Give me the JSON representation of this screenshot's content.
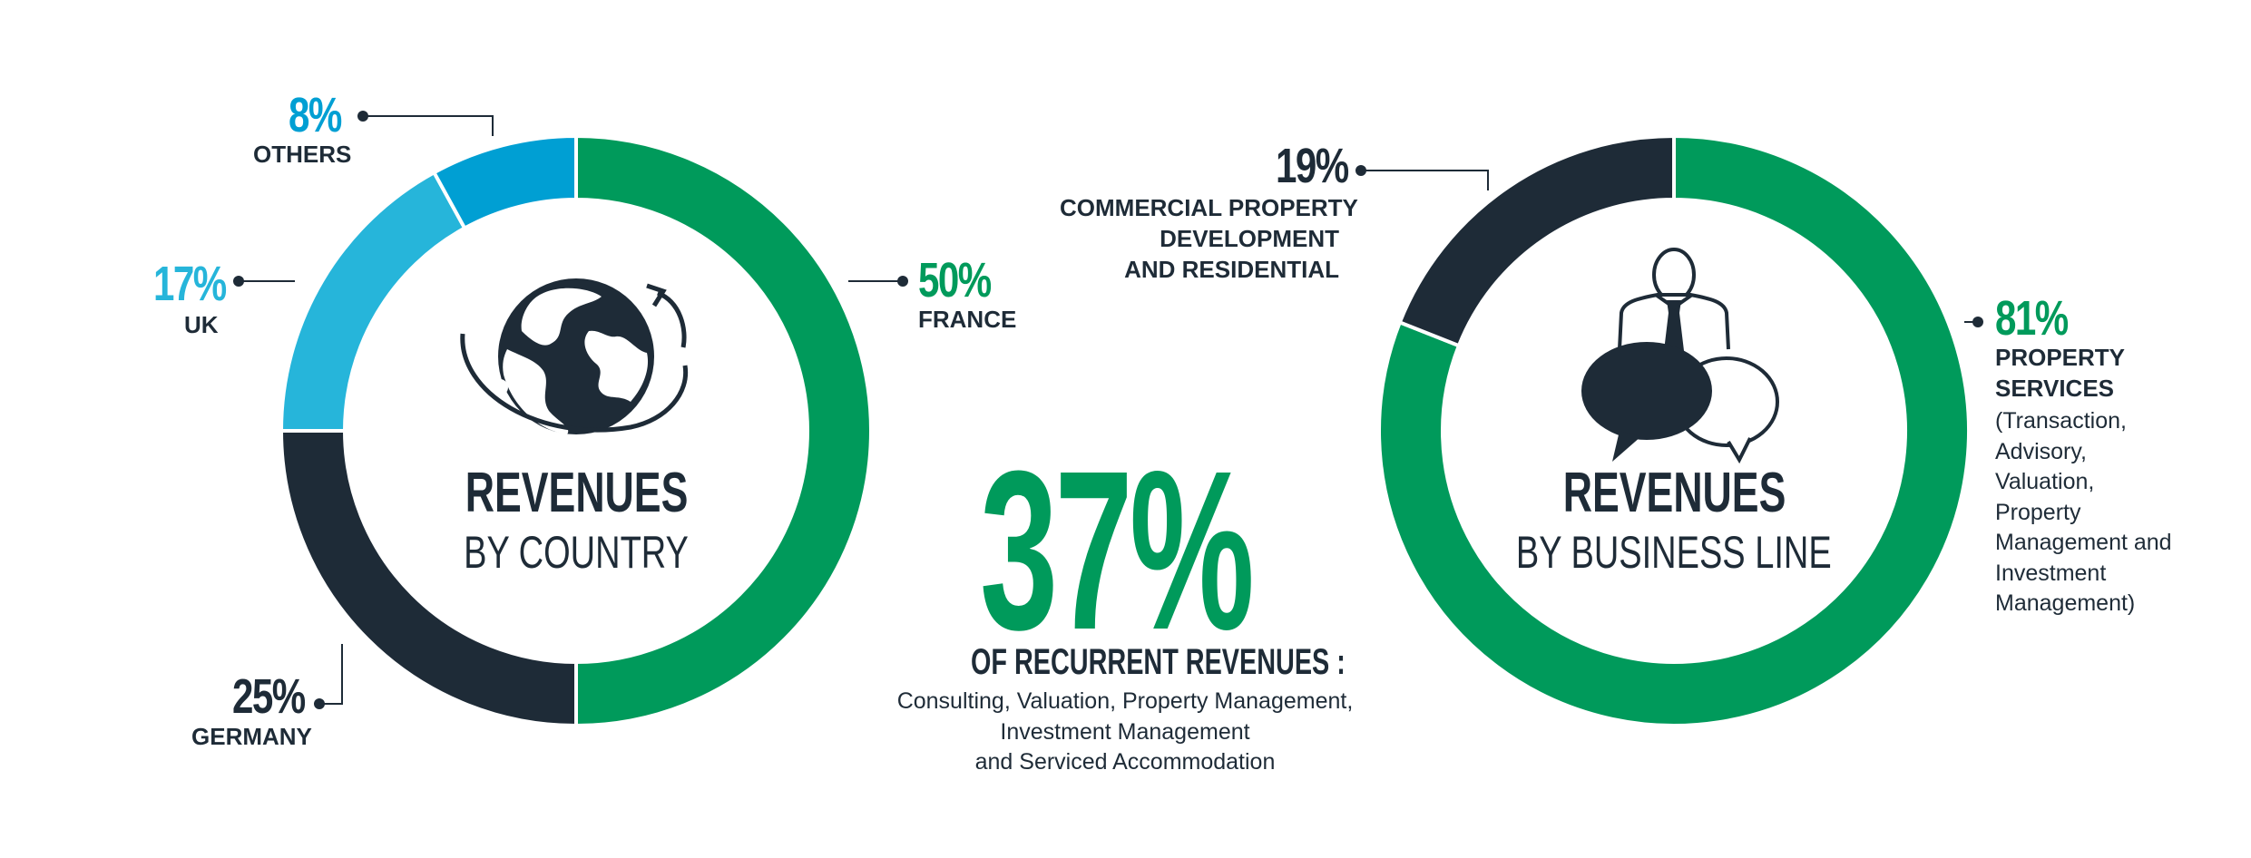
{
  "chart_data": [
    {
      "type": "pie",
      "title": "REVENUES",
      "subtitle": "BY COUNTRY",
      "slices": [
        {
          "label": "FRANCE",
          "value": 50,
          "value_label": "50%",
          "color": "#009a5b"
        },
        {
          "label": "GERMANY",
          "value": 25,
          "value_label": "25%",
          "color": "#1e2b37"
        },
        {
          "label": "UK",
          "value": 17,
          "value_label": "17%",
          "color": "#26b5da"
        },
        {
          "label": "OTHERS",
          "value": 8,
          "value_label": "8%",
          "color": "#009fd3"
        }
      ],
      "center_icon": "globe-icon"
    },
    {
      "type": "pie",
      "title": "REVENUES",
      "subtitle": "BY BUSINESS LINE",
      "slices": [
        {
          "label": "PROPERTY SERVICES",
          "value": 81,
          "value_label": "81%",
          "color": "#009a5b",
          "description": [
            "(Transaction,",
            "Advisory,",
            "Valuation,",
            "Property",
            "Management and",
            "Investment",
            "Management)"
          ]
        },
        {
          "label": "COMMERCIAL PROPERTY DEVELOPMENT AND RESIDENTIAL",
          "value": 19,
          "value_label": "19%",
          "color": "#1e2b37",
          "label_lines": [
            "COMMERCIAL PROPERTY",
            "DEVELOPMENT",
            "AND RESIDENTIAL"
          ]
        }
      ],
      "center_icon": "businessman-speech-bubbles-icon"
    }
  ],
  "recurrent": {
    "value": 37,
    "value_label": "37%",
    "heading": "OF RECURRENT REVENUES :",
    "lines": [
      "Consulting, Valuation, Property Management,",
      "Investment Management",
      "and Serviced Accommodation"
    ]
  },
  "colors": {
    "green": "#009a5b",
    "navy": "#1e2b37",
    "light_blue": "#26b5da",
    "blue": "#009fd3"
  }
}
